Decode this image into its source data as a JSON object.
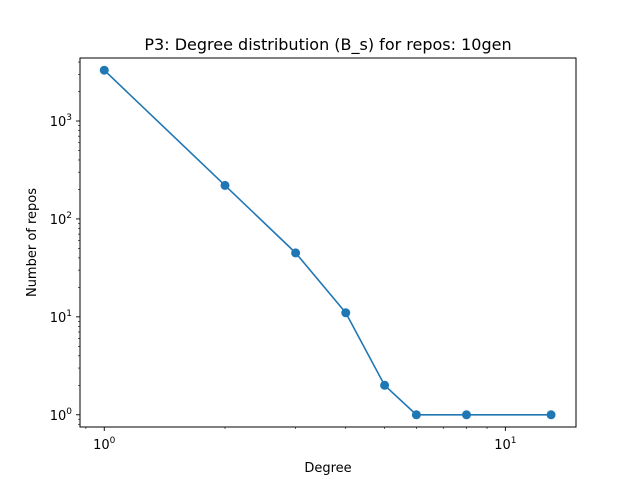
{
  "chart_data": {
    "type": "line",
    "title": "P3: Degree distribution (B_s) for repos: 10gen",
    "xlabel": "Degree",
    "ylabel": "Number of repos",
    "xscale": "log",
    "yscale": "log",
    "xlim": [
      0.87,
      15.0
    ],
    "ylim": [
      0.75,
      4400
    ],
    "grid": false,
    "legend": "none",
    "series": [
      {
        "x": [
          1,
          2,
          3,
          4,
          5,
          6,
          8,
          13
        ],
        "values": [
          3300,
          220,
          45,
          11,
          2,
          1,
          1,
          1
        ],
        "color": "#1f77b4",
        "marker": "circle"
      }
    ],
    "x_major_ticks": [
      {
        "value": 1,
        "base": "10",
        "exp": "0"
      },
      {
        "value": 10,
        "base": "10",
        "exp": "1"
      }
    ],
    "y_major_ticks": [
      {
        "value": 1,
        "base": "10",
        "exp": "0"
      },
      {
        "value": 10,
        "base": "10",
        "exp": "1"
      },
      {
        "value": 100,
        "base": "10",
        "exp": "2"
      },
      {
        "value": 1000,
        "base": "10",
        "exp": "3"
      }
    ]
  }
}
